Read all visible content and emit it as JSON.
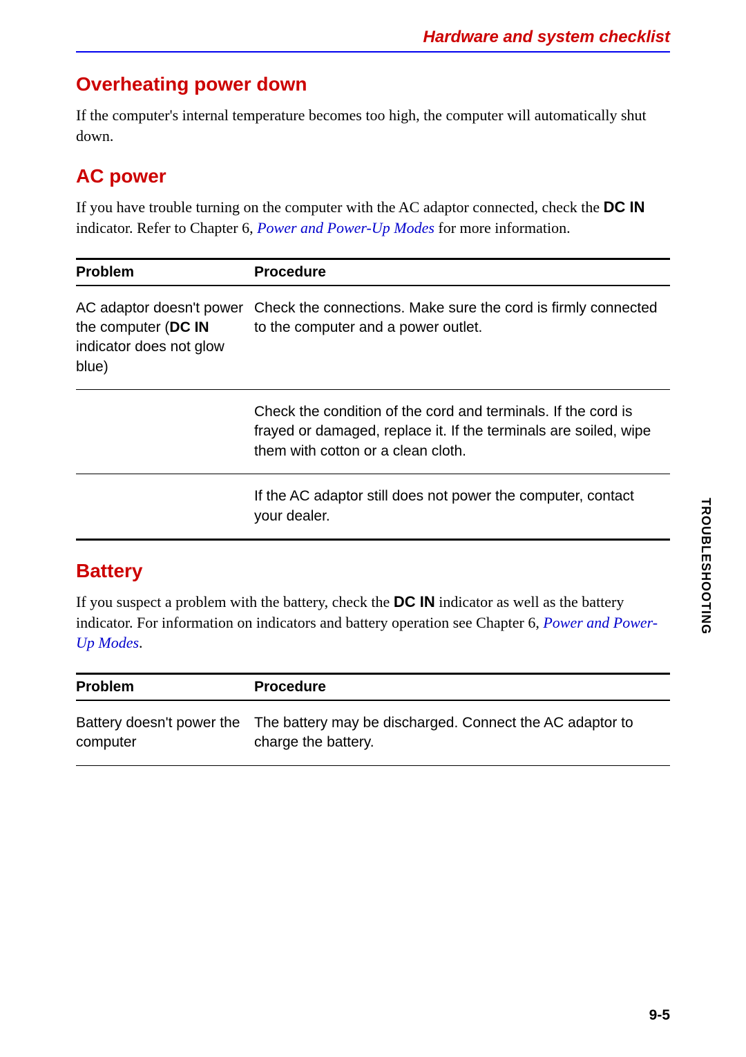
{
  "header": {
    "title": "Hardware and system checklist"
  },
  "sections": {
    "overheating": {
      "heading": "Overheating power down",
      "body": "If the computer's internal temperature becomes too high, the computer will automatically shut down."
    },
    "ac_power": {
      "heading": "AC power",
      "body_pre": "If you have trouble turning on the computer with the AC adaptor connected, check the ",
      "body_bold": "DC IN",
      "body_mid": " indicator. Refer to Chapter 6, ",
      "body_link": "Power and Power-Up Modes",
      "body_post": " for more information."
    },
    "battery": {
      "heading": "Battery",
      "body_pre": "If you suspect a problem with the battery, check the ",
      "body_bold": "DC IN",
      "body_mid": " indicator as well as the battery indicator. For information on indicators and battery operation see Chapter 6, ",
      "body_link": "Power and Power-Up Modes",
      "body_post": "."
    }
  },
  "tables": {
    "ac_power": {
      "columns": [
        "Problem",
        "Procedure"
      ],
      "rows": [
        {
          "problem_pre": "AC adaptor doesn't power the computer (",
          "problem_bold": "DC IN",
          "problem_post": " indicator does not glow blue)",
          "procedure": "Check the connections. Make sure the cord is firmly connected to the computer and a power outlet."
        },
        {
          "problem": "",
          "procedure": "Check the condition of the cord and terminals. If the cord is frayed or damaged, replace it. If the terminals are soiled, wipe them with cotton or a clean cloth."
        },
        {
          "problem": "",
          "procedure": "If the AC adaptor still does not power the computer, contact your dealer."
        }
      ]
    },
    "battery": {
      "columns": [
        "Problem",
        "Procedure"
      ],
      "rows": [
        {
          "problem": "Battery doesn't power the computer",
          "procedure": "The battery may be discharged. Connect the AC adaptor to charge the battery."
        }
      ]
    }
  },
  "side_label": "TROUBLESHOOTING",
  "page_number": "9-5",
  "colors": {
    "heading_red": "#cc0000",
    "rule_blue": "#0000ee",
    "link_blue": "#0000cc",
    "text_black": "#000000",
    "background": "#ffffff"
  },
  "typography": {
    "header_title_fontsize": 24,
    "section_heading_fontsize": 28,
    "body_fontsize": 22,
    "table_fontsize": 21,
    "side_label_fontsize": 18,
    "page_number_fontsize": 21
  }
}
